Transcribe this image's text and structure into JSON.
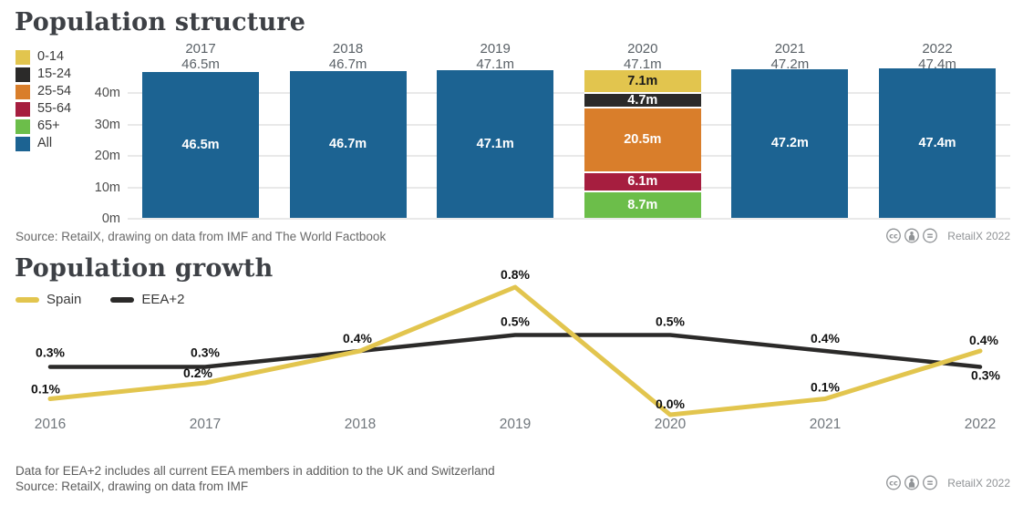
{
  "chart_data": [
    {
      "type": "bar",
      "title": "Population structure",
      "stacked": true,
      "unit": "m",
      "ylim": [
        0,
        48
      ],
      "grid": true,
      "legend_position": "top-left",
      "y_tick_values": [
        0,
        10,
        20,
        30,
        40
      ],
      "y_tick_labels": [
        "0m",
        "10m",
        "20m",
        "30m",
        "40m"
      ],
      "legend": [
        {
          "label": "0-14",
          "color": "#e2c54e"
        },
        {
          "label": "15-24",
          "color": "#2b2a29"
        },
        {
          "label": "25-54",
          "color": "#d97e2b"
        },
        {
          "label": "55-64",
          "color": "#a61e3f"
        },
        {
          "label": "65+",
          "color": "#6cbe4a"
        },
        {
          "label": "All",
          "color": "#1c6392"
        }
      ],
      "categories": [
        "2017",
        "2018",
        "2019",
        "2020",
        "2021",
        "2022"
      ],
      "bars": [
        {
          "category": "2017",
          "total": 46.5,
          "total_label": "46.5m",
          "segments": [
            {
              "label": "All",
              "value": 46.5,
              "text": "46.5m",
              "color": "#1c6392",
              "text_color": "#ffffff"
            }
          ]
        },
        {
          "category": "2018",
          "total": 46.7,
          "total_label": "46.7m",
          "segments": [
            {
              "label": "All",
              "value": 46.7,
              "text": "46.7m",
              "color": "#1c6392",
              "text_color": "#ffffff"
            }
          ]
        },
        {
          "category": "2019",
          "total": 47.1,
          "total_label": "47.1m",
          "segments": [
            {
              "label": "All",
              "value": 47.1,
              "text": "47.1m",
              "color": "#1c6392",
              "text_color": "#ffffff"
            }
          ]
        },
        {
          "category": "2020",
          "total": 47.1,
          "total_label": "47.1m",
          "segments": [
            {
              "label": "0-14",
              "value": 7.1,
              "text": "7.1m",
              "color": "#e2c54e",
              "text_color": "#1a1a1a"
            },
            {
              "label": "15-24",
              "value": 4.7,
              "text": "4.7m",
              "color": "#2b2a29",
              "text_color": "#ffffff"
            },
            {
              "label": "25-54",
              "value": 20.5,
              "text": "20.5m",
              "color": "#d97e2b",
              "text_color": "#ffffff"
            },
            {
              "label": "55-64",
              "value": 6.1,
              "text": "6.1m",
              "color": "#a61e3f",
              "text_color": "#ffffff"
            },
            {
              "label": "65+",
              "value": 8.7,
              "text": "8.7m",
              "color": "#6cbe4a",
              "text_color": "#ffffff"
            }
          ]
        },
        {
          "category": "2021",
          "total": 47.2,
          "total_label": "47.2m",
          "segments": [
            {
              "label": "All",
              "value": 47.2,
              "text": "47.2m",
              "color": "#1c6392",
              "text_color": "#ffffff"
            }
          ]
        },
        {
          "category": "2022",
          "total": 47.4,
          "total_label": "47.4m",
          "segments": [
            {
              "label": "All",
              "value": 47.4,
              "text": "47.4m",
              "color": "#1c6392",
              "text_color": "#ffffff"
            }
          ]
        }
      ],
      "source": "Source: RetailX, drawing on data from IMF and The World Factbook",
      "credit": "RetailX 2022"
    },
    {
      "type": "line",
      "title": "Population growth",
      "unit": "%",
      "ylim": [
        0,
        0.9
      ],
      "legend_position": "top-left",
      "x": [
        "2016",
        "2017",
        "2018",
        "2019",
        "2020",
        "2021",
        "2022"
      ],
      "series": [
        {
          "name": "Spain",
          "color": "#e2c54e",
          "values": [
            0.1,
            0.2,
            0.4,
            0.8,
            0.0,
            0.1,
            0.4
          ],
          "labels": [
            "0.1%",
            "0.2%",
            null,
            "0.8%",
            "0.0%",
            "0.1%",
            "0.4%"
          ]
        },
        {
          "name": "EEA+2",
          "color": "#2b2a29",
          "values": [
            0.3,
            0.3,
            0.4,
            0.5,
            0.5,
            0.4,
            0.3
          ],
          "labels": [
            "0.3%",
            "0.3%",
            "0.4%",
            "0.5%",
            "0.5%",
            "0.4%",
            "0.3%"
          ]
        }
      ],
      "note": "Data for EEA+2 includes all current EEA members in addition to the UK and Switzerland",
      "source": "Source: RetailX, drawing on data from IMF",
      "credit": "RetailX 2022"
    }
  ]
}
